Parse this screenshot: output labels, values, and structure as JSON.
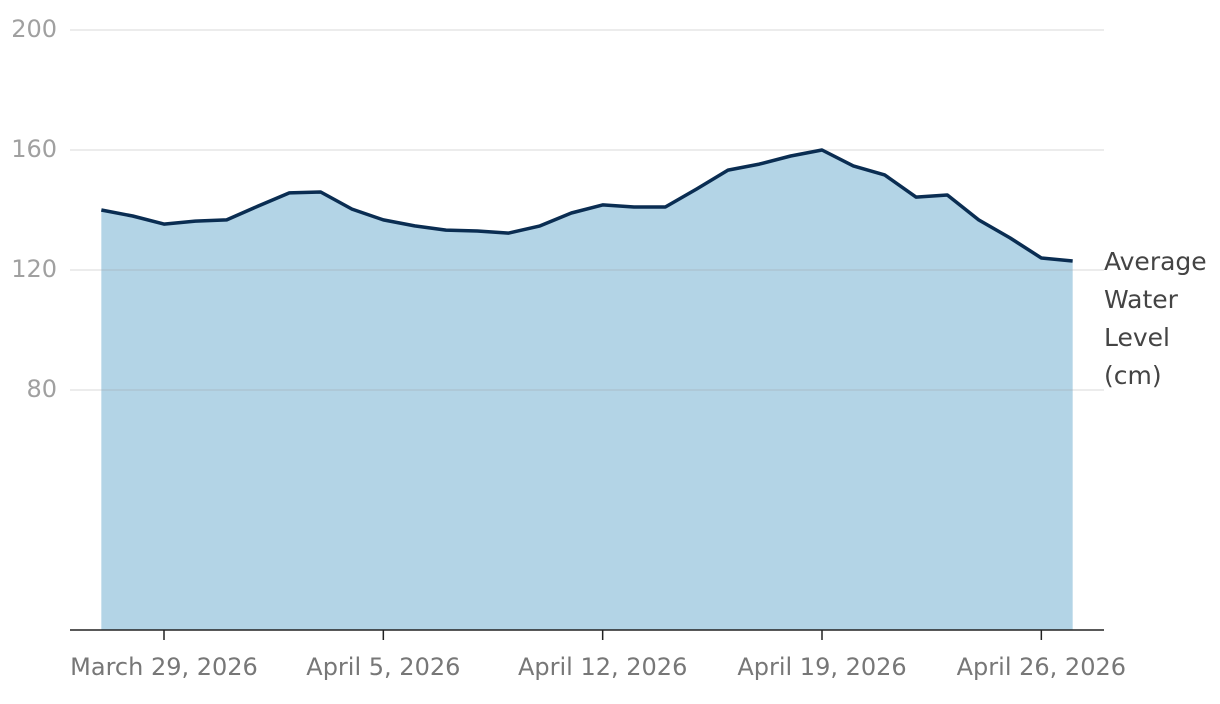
{
  "chart_data": {
    "type": "area",
    "x": [
      "2026-03-27",
      "2026-03-28",
      "2026-03-29",
      "2026-03-30",
      "2026-03-31",
      "2026-04-01",
      "2026-04-02",
      "2026-04-03",
      "2026-04-04",
      "2026-04-05",
      "2026-04-06",
      "2026-04-07",
      "2026-04-08",
      "2026-04-09",
      "2026-04-10",
      "2026-04-11",
      "2026-04-12",
      "2026-04-13",
      "2026-04-14",
      "2026-04-15",
      "2026-04-16",
      "2026-04-17",
      "2026-04-18",
      "2026-04-19",
      "2026-04-20",
      "2026-04-21",
      "2026-04-22",
      "2026-04-23",
      "2026-04-24",
      "2026-04-25",
      "2026-04-26",
      "2026-04-27"
    ],
    "series": [
      {
        "name": "Average Water Level (cm)",
        "color": "#0a2d52",
        "fill": "#b3d4e6",
        "values": [
          140,
          138,
          135.3,
          136.3,
          136.7,
          141.3,
          145.7,
          146,
          140.3,
          136.7,
          134.7,
          133.3,
          133,
          132.3,
          134.7,
          139,
          141.7,
          141,
          141,
          147,
          153.3,
          155.3,
          158,
          160,
          154.7,
          151.7,
          144.3,
          145,
          136.7,
          130.7,
          124,
          123
        ]
      }
    ],
    "xlim": [
      "2026-03-26",
      "2026-04-28"
    ],
    "xticks": [
      {
        "value": "2026-03-29",
        "label": "March 29, 2026"
      },
      {
        "value": "2026-04-05",
        "label": "April 5, 2026"
      },
      {
        "value": "2026-04-12",
        "label": "April 12, 2026"
      },
      {
        "value": "2026-04-19",
        "label": "April 19, 2026"
      },
      {
        "value": "2026-04-26",
        "label": "April 26, 2026"
      }
    ],
    "ylim": [
      0,
      200
    ],
    "yticks": [
      80,
      120,
      160,
      200
    ],
    "grid": true
  }
}
